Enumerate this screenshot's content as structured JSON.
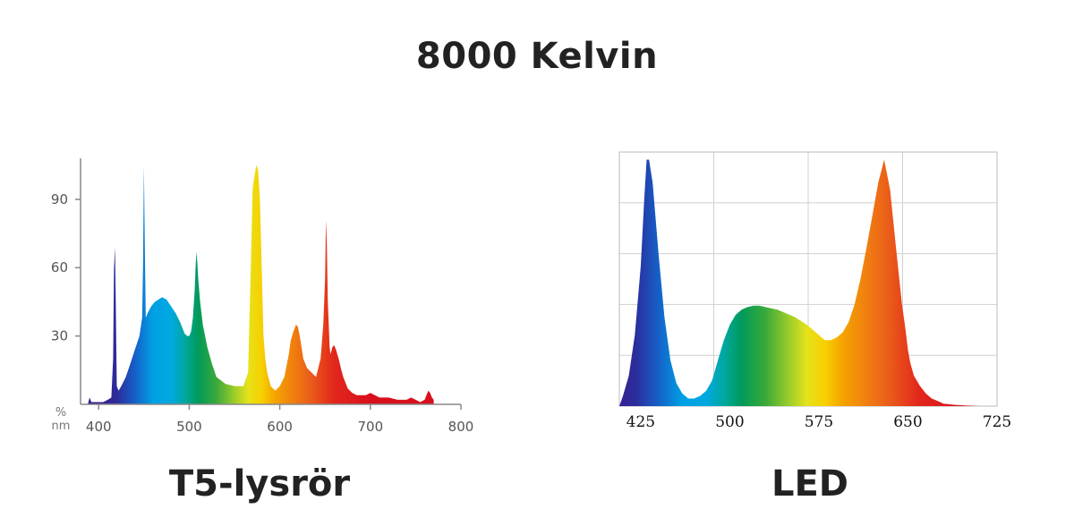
{
  "title": "8000 Kelvin",
  "chart_data": [
    {
      "type": "area",
      "caption": "T5-lysrör",
      "y_unit": "%",
      "x_unit": "nm",
      "xlim": [
        380,
        800
      ],
      "ylim": [
        0,
        108
      ],
      "x_ticks": [
        400,
        500,
        600,
        700,
        800
      ],
      "y_ticks": [
        30,
        60,
        90
      ],
      "grid": false,
      "series": [
        {
          "x": [
            388,
            390,
            392,
            394,
            396,
            398,
            400,
            405,
            410,
            414,
            416,
            417,
            418,
            419,
            420,
            422,
            425,
            430,
            435,
            440,
            445,
            448,
            449,
            450,
            451,
            452,
            454,
            458,
            462,
            466,
            470,
            475,
            480,
            485,
            490,
            495,
            498,
            500,
            502,
            504,
            506,
            507,
            508,
            509,
            510,
            512,
            515,
            520,
            525,
            530,
            540,
            550,
            560,
            565,
            568,
            570,
            572,
            574,
            576,
            578,
            580,
            582,
            584,
            586,
            590,
            595,
            600,
            605,
            610,
            612,
            615,
            618,
            620,
            622,
            624,
            626,
            628,
            630,
            635,
            640,
            645,
            648,
            650,
            651,
            652,
            653,
            654,
            655,
            656,
            658,
            660,
            662,
            665,
            668,
            670,
            672,
            675,
            680,
            685,
            690,
            695,
            700,
            705,
            710,
            720,
            730,
            740,
            745,
            750,
            755,
            760,
            762,
            764,
            766,
            768,
            770
          ],
          "y": [
            0,
            3,
            1,
            1,
            1,
            1,
            1,
            1,
            2,
            3,
            20,
            60,
            69,
            40,
            8,
            6,
            8,
            12,
            18,
            24,
            30,
            38,
            60,
            105,
            70,
            38,
            40,
            43,
            45,
            46,
            47,
            46,
            43,
            40,
            36,
            31,
            30,
            30,
            32,
            38,
            50,
            60,
            67,
            62,
            55,
            45,
            35,
            25,
            18,
            12,
            9,
            8,
            8,
            14,
            60,
            95,
            100,
            105,
            103,
            90,
            60,
            30,
            20,
            14,
            8,
            6,
            8,
            12,
            22,
            28,
            32,
            35,
            34,
            30,
            25,
            20,
            18,
            16,
            14,
            12,
            20,
            35,
            55,
            81,
            70,
            45,
            35,
            25,
            22,
            25,
            26,
            24,
            20,
            15,
            12,
            10,
            7,
            5,
            4,
            4,
            4,
            5,
            4,
            3,
            3,
            2,
            2,
            3,
            2,
            1,
            2,
            4,
            6,
            5,
            3,
            2
          ]
        }
      ]
    },
    {
      "type": "area",
      "caption": "LED",
      "xlim": [
        407,
        725
      ],
      "ylim": [
        0,
        100
      ],
      "x_ticks": [
        425,
        500,
        575,
        650,
        725
      ],
      "grid": true,
      "series": [
        {
          "x": [
            407,
            410,
            415,
            420,
            425,
            428,
            430,
            432,
            435,
            440,
            445,
            450,
            455,
            460,
            465,
            470,
            475,
            480,
            485,
            490,
            495,
            500,
            505,
            510,
            515,
            520,
            525,
            530,
            535,
            540,
            545,
            550,
            555,
            560,
            565,
            570,
            575,
            580,
            585,
            590,
            595,
            600,
            605,
            610,
            615,
            620,
            625,
            630,
            635,
            640,
            645,
            648,
            650,
            652,
            655,
            660,
            665,
            670,
            675,
            680,
            690,
            700,
            710,
            720,
            725
          ],
          "y": [
            0,
            4,
            12,
            28,
            55,
            82,
            97,
            97,
            88,
            60,
            35,
            18,
            9,
            5,
            3,
            3,
            4,
            6,
            10,
            18,
            26,
            32,
            36,
            38,
            39,
            39.5,
            39.5,
            39,
            38.5,
            38,
            37,
            36,
            35,
            33.5,
            32,
            30,
            28,
            26,
            26,
            27,
            29,
            33,
            40,
            50,
            62,
            75,
            88,
            97,
            85,
            62,
            40,
            30,
            22,
            17,
            12,
            8,
            5,
            3,
            2,
            1,
            0.5,
            0.2,
            0,
            0,
            0
          ]
        }
      ]
    }
  ]
}
